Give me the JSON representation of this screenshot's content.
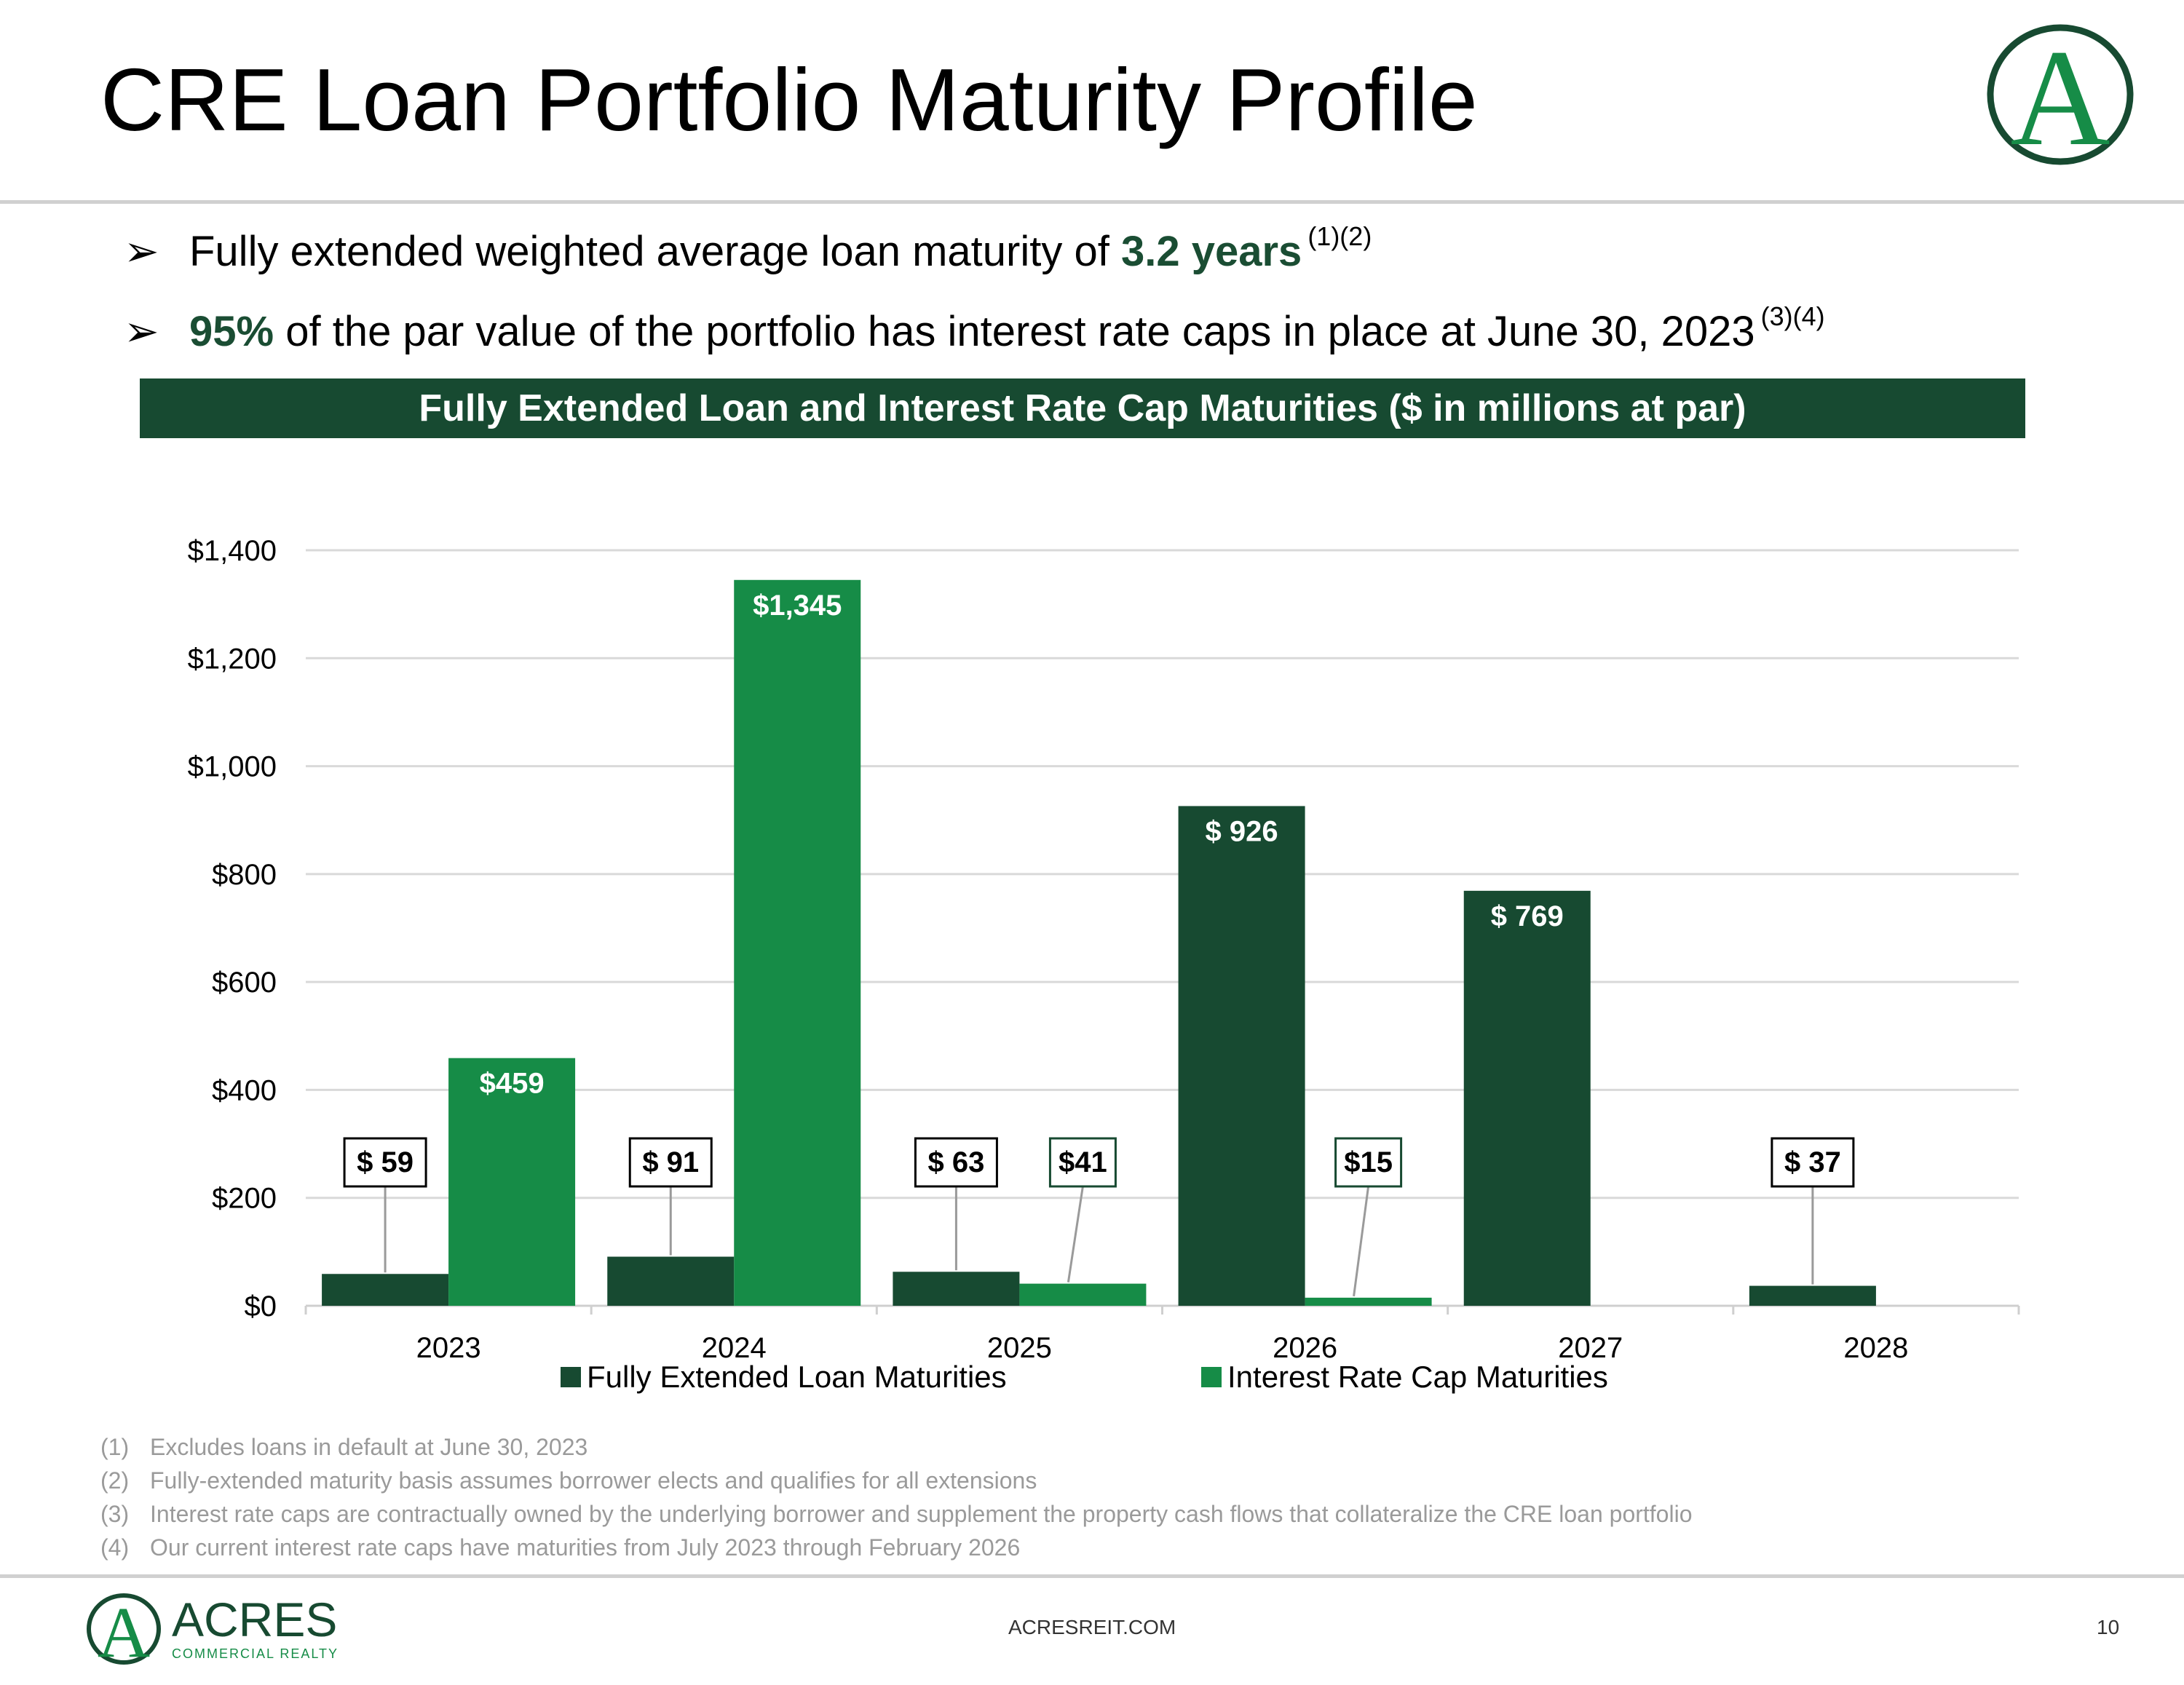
{
  "slide": {
    "title": "CRE Loan Portfolio Maturity Profile",
    "bullets": [
      {
        "arrow": "➢",
        "pre": "Fully extended weighted average loan maturity of ",
        "highlight": "3.2 years",
        "post": "",
        "note": "(1)(2)"
      },
      {
        "arrow": "➢",
        "pre": "",
        "highlight": "95%",
        "post": " of the par value of the portfolio has interest rate caps in place at June 30, 2023",
        "note": "(3)(4)"
      }
    ],
    "chart_banner": "Fully Extended Loan and Interest Rate Cap Maturities ($ in millions at par)",
    "footnotes": [
      {
        "num": "(1)",
        "text": "Excludes loans in default at June 30, 2023"
      },
      {
        "num": "(2)",
        "text": "Fully-extended maturity basis assumes borrower elects and qualifies for all extensions"
      },
      {
        "num": "(3)",
        "text": "Interest rate caps are contractually owned by the underlying borrower and supplement the property cash flows that collateralize the CRE loan portfolio"
      },
      {
        "num": "(4)",
        "text": "Our current interest rate caps have maturities from July 2023 through February 2026"
      }
    ],
    "footer_url": "ACRESREIT.COM",
    "page_number": "10",
    "brand": {
      "name": "ACRES",
      "tagline": "COMMERCIAL REALTY",
      "monogram": "A"
    }
  },
  "colors": {
    "dark_green": "#174a31",
    "bright_green": "#168c47",
    "grid": "#d9d9d9",
    "axis": "#cfcfcf",
    "footnote": "#9a9a9a"
  },
  "chart_data": {
    "type": "bar",
    "title": "Fully Extended Loan and Interest Rate Cap Maturities ($ in millions at par)",
    "categories": [
      "2023",
      "2024",
      "2025",
      "2026",
      "2027",
      "2028"
    ],
    "series": [
      {
        "name": "Fully Extended Loan Maturities",
        "color": "#174a31",
        "values": [
          59,
          91,
          63,
          926,
          769,
          37
        ],
        "labels": [
          "$ 59",
          "$ 91",
          "$ 63",
          "$ 926",
          "$ 769",
          "$ 37"
        ],
        "label_style": [
          "callout",
          "callout",
          "callout",
          "inside",
          "inside",
          "callout"
        ]
      },
      {
        "name": "Interest Rate Cap Maturities",
        "color": "#168c47",
        "values": [
          459,
          1345,
          41,
          15,
          0,
          0
        ],
        "labels": [
          "$459",
          "$1,345",
          "$41",
          "$15",
          "",
          ""
        ],
        "label_style": [
          "inside",
          "inside",
          "callout",
          "callout",
          "none",
          "none"
        ]
      }
    ],
    "ylim": [
      0,
      1400
    ],
    "yticks": [
      0,
      200,
      400,
      600,
      800,
      1000,
      1200,
      1400
    ],
    "ytick_labels": [
      "$0",
      "$200",
      "$400",
      "$600",
      "$800",
      "$1,000",
      "$1,200",
      "$1,400"
    ],
    "grid": true,
    "legend": "bottom-center",
    "xlabel": "",
    "ylabel": ""
  }
}
